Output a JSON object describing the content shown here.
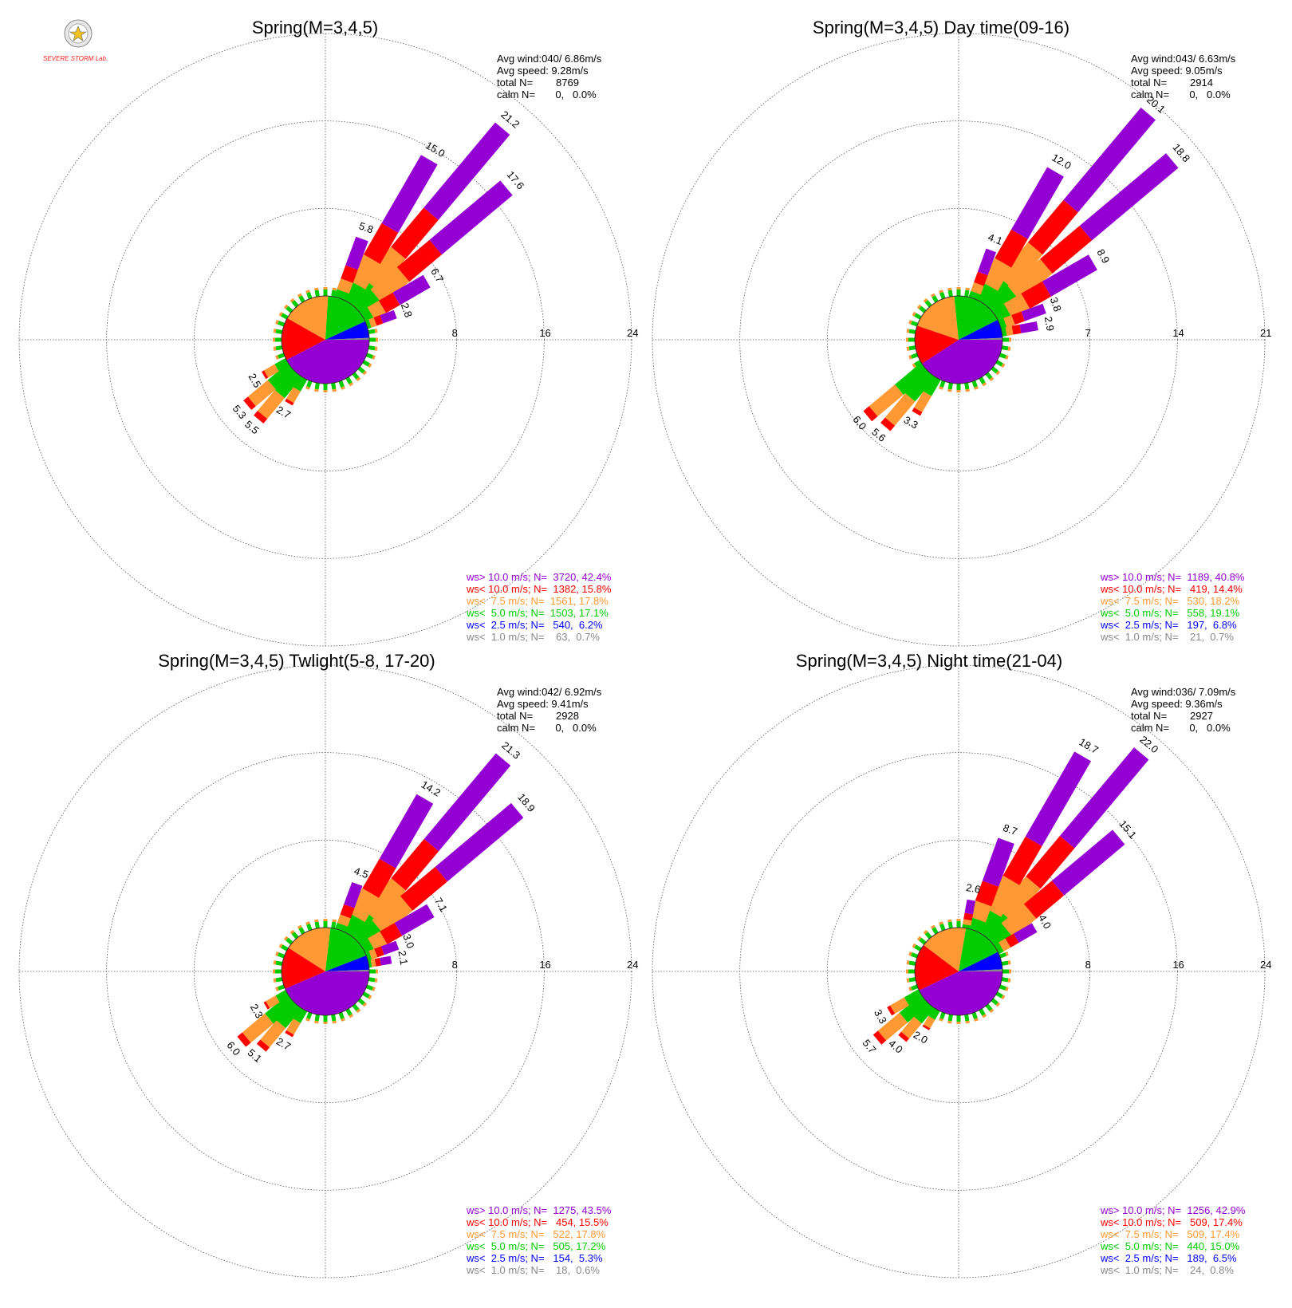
{
  "logo": {
    "text": "SEVERE STORM Lab."
  },
  "colors": {
    "gt10": "#9400d3",
    "lt10": "#ff0000",
    "lt75": "#ff9933",
    "lt5": "#00cc00",
    "lt25": "#0000ff",
    "lt1": "#888888"
  },
  "chart_data": [
    {
      "type": "wind-rose",
      "title": "Spring(M=3,4,5)",
      "stats": [
        "Avg wind:040/ 6.86m/s",
        "Avg speed: 9.28m/s",
        "total N=        8769",
        "calm N=       0,   0.0%"
      ],
      "rings": [
        8,
        16,
        24
      ],
      "petals": [
        {
          "dir": 40,
          "value": 21.2
        },
        {
          "dir": 30,
          "value": 15.0
        },
        {
          "dir": 50,
          "value": 17.6
        },
        {
          "dir": 20,
          "value": 5.8
        },
        {
          "dir": 60,
          "value": 6.7
        },
        {
          "dir": 70,
          "value": 2.8
        },
        {
          "dir": 220,
          "value": 5.5
        },
        {
          "dir": 230,
          "value": 5.3
        },
        {
          "dir": 240,
          "value": 2.5
        },
        {
          "dir": 210,
          "value": 2.7
        }
      ],
      "legend": [
        {
          "key": "gt10",
          "text": "ws> 10.0 m/s; N=  3720, 42.4%"
        },
        {
          "key": "lt10",
          "text": "ws< 10.0 m/s; N=  1382, 15.8%"
        },
        {
          "key": "lt75",
          "text": "ws<  7.5 m/s; N=  1561, 17.8%"
        },
        {
          "key": "lt5",
          "text": "ws<  5.0 m/s; N=  1503, 17.1%"
        },
        {
          "key": "lt25",
          "text": "ws<  2.5 m/s; N=   540,  6.2%"
        },
        {
          "key": "lt1",
          "text": "ws<  1.0 m/s; N=    63,  0.7%"
        }
      ],
      "pie": [
        42.4,
        15.8,
        17.8,
        17.1,
        6.2,
        0.7
      ]
    },
    {
      "type": "wind-rose",
      "title": "Spring(M=3,4,5) Day time(09-16)",
      "stats": [
        "Avg wind:043/ 6.63m/s",
        "Avg speed: 9.05m/s",
        "total N=        2914",
        "calm N=       0,   0.0%"
      ],
      "rings": [
        7,
        14,
        21
      ],
      "petals": [
        {
          "dir": 40,
          "value": 20.1
        },
        {
          "dir": 30,
          "value": 12.0
        },
        {
          "dir": 50,
          "value": 18.8
        },
        {
          "dir": 20,
          "value": 4.1
        },
        {
          "dir": 60,
          "value": 8.9
        },
        {
          "dir": 70,
          "value": 3.8
        },
        {
          "dir": 80,
          "value": 2.9
        },
        {
          "dir": 230,
          "value": 6.0
        },
        {
          "dir": 220,
          "value": 5.6
        },
        {
          "dir": 210,
          "value": 3.3
        }
      ],
      "legend": [
        {
          "key": "gt10",
          "text": "ws> 10.0 m/s; N=  1189, 40.8%"
        },
        {
          "key": "lt10",
          "text": "ws< 10.0 m/s; N=   419, 14.4%"
        },
        {
          "key": "lt75",
          "text": "ws<  7.5 m/s; N=   530, 18.2%"
        },
        {
          "key": "lt5",
          "text": "ws<  5.0 m/s; N=   558, 19.1%"
        },
        {
          "key": "lt25",
          "text": "ws<  2.5 m/s; N=   197,  6.8%"
        },
        {
          "key": "lt1",
          "text": "ws<  1.0 m/s; N=    21,  0.7%"
        }
      ],
      "pie": [
        40.8,
        14.4,
        18.2,
        19.1,
        6.8,
        0.7
      ]
    },
    {
      "type": "wind-rose",
      "title": "Spring(M=3,4,5) Twlight(5-8, 17-20)",
      "stats": [
        "Avg wind:042/ 6.92m/s",
        "Avg speed: 9.41m/s",
        "total N=        2928",
        "calm N=       0,   0.0%"
      ],
      "rings": [
        8,
        16,
        24
      ],
      "petals": [
        {
          "dir": 40,
          "value": 21.3
        },
        {
          "dir": 30,
          "value": 14.2
        },
        {
          "dir": 50,
          "value": 18.9
        },
        {
          "dir": 20,
          "value": 4.5
        },
        {
          "dir": 60,
          "value": 7.1
        },
        {
          "dir": 70,
          "value": 3.0
        },
        {
          "dir": 80,
          "value": 2.1
        },
        {
          "dir": 230,
          "value": 6.0
        },
        {
          "dir": 220,
          "value": 5.1
        },
        {
          "dir": 240,
          "value": 2.3
        },
        {
          "dir": 210,
          "value": 2.7
        }
      ],
      "legend": [
        {
          "key": "gt10",
          "text": "ws> 10.0 m/s; N=  1275, 43.5%"
        },
        {
          "key": "lt10",
          "text": "ws< 10.0 m/s; N=   454, 15.5%"
        },
        {
          "key": "lt75",
          "text": "ws<  7.5 m/s; N=   522, 17.8%"
        },
        {
          "key": "lt5",
          "text": "ws<  5.0 m/s; N=   505, 17.2%"
        },
        {
          "key": "lt25",
          "text": "ws<  2.5 m/s; N=   154,  5.3%"
        },
        {
          "key": "lt1",
          "text": "ws<  1.0 m/s; N=    18,  0.6%"
        }
      ],
      "pie": [
        43.5,
        15.5,
        17.8,
        17.2,
        5.3,
        0.6
      ]
    },
    {
      "type": "wind-rose",
      "title": "Spring(M=3,4,5) Night time(21-04)",
      "stats": [
        "Avg wind:036/ 7.09m/s",
        "Avg speed: 9.36m/s",
        "total N=        2927",
        "calm N=       0,   0.0%"
      ],
      "rings": [
        8,
        16,
        24
      ],
      "petals": [
        {
          "dir": 40,
          "value": 22.0
        },
        {
          "dir": 30,
          "value": 18.7
        },
        {
          "dir": 50,
          "value": 15.1
        },
        {
          "dir": 20,
          "value": 8.7
        },
        {
          "dir": 10,
          "value": 2.6
        },
        {
          "dir": 60,
          "value": 4.0
        },
        {
          "dir": 230,
          "value": 5.7
        },
        {
          "dir": 220,
          "value": 4.0
        },
        {
          "dir": 240,
          "value": 3.3
        },
        {
          "dir": 210,
          "value": 2.0
        }
      ],
      "legend": [
        {
          "key": "gt10",
          "text": "ws> 10.0 m/s; N=  1256, 42.9%"
        },
        {
          "key": "lt10",
          "text": "ws< 10.0 m/s; N=   509, 17.4%"
        },
        {
          "key": "lt75",
          "text": "ws<  7.5 m/s; N=   509, 17.4%"
        },
        {
          "key": "lt5",
          "text": "ws<  5.0 m/s; N=   440, 15.0%"
        },
        {
          "key": "lt25",
          "text": "ws<  2.5 m/s; N=   189,  6.5%"
        },
        {
          "key": "lt1",
          "text": "ws<  1.0 m/s; N=    24,  0.8%"
        }
      ],
      "pie": [
        42.9,
        17.4,
        17.4,
        15.0,
        6.5,
        0.8
      ]
    }
  ]
}
